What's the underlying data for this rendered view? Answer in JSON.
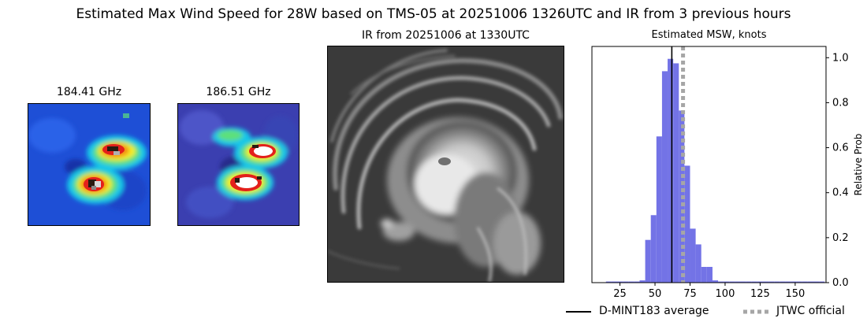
{
  "suptitle": "Estimated Max Wind Speed for 28W based on TMS-05 at 20251006 1326UTC and IR from 3 previous hours",
  "panels": {
    "mw1_title": "184.41 GHz",
    "mw2_title": "186.51 GHz",
    "ir_title": "IR from 20251006 at 1330UTC",
    "hist_title": "Estimated MSW, knots"
  },
  "colors": {
    "hist_bar": "#7373e6",
    "average_line": "#000000",
    "jtwc_line": "#a6a6a6"
  },
  "chart_data": {
    "type": "bar",
    "title": "Estimated MSW, knots",
    "xlabel": "",
    "ylabel": "Relative Prob",
    "xlim": [
      5,
      172
    ],
    "ylim": [
      0,
      1.05
    ],
    "xticks": [
      25,
      50,
      75,
      100,
      125,
      150
    ],
    "yticks": [
      0.0,
      0.2,
      0.4,
      0.6,
      0.8,
      1.0
    ],
    "ytick_labels": [
      "0.0",
      "0.2",
      "0.4",
      "0.6",
      "0.8",
      "1.0"
    ],
    "yaxis_side": "right",
    "bin_width": 4,
    "bins": [
      {
        "x0": 15,
        "value": 0.005
      },
      {
        "x0": 19,
        "value": 0.005
      },
      {
        "x0": 23,
        "value": 0.005
      },
      {
        "x0": 27,
        "value": 0.005
      },
      {
        "x0": 31,
        "value": 0.005
      },
      {
        "x0": 35,
        "value": 0.005
      },
      {
        "x0": 39,
        "value": 0.01
      },
      {
        "x0": 43,
        "value": 0.19
      },
      {
        "x0": 47,
        "value": 0.3
      },
      {
        "x0": 51,
        "value": 0.65
      },
      {
        "x0": 55,
        "value": 0.94
      },
      {
        "x0": 59,
        "value": 0.995
      },
      {
        "x0": 63,
        "value": 0.975
      },
      {
        "x0": 67,
        "value": 0.765
      },
      {
        "x0": 71,
        "value": 0.52
      },
      {
        "x0": 75,
        "value": 0.24
      },
      {
        "x0": 79,
        "value": 0.17
      },
      {
        "x0": 83,
        "value": 0.07
      },
      {
        "x0": 87,
        "value": 0.07
      },
      {
        "x0": 91,
        "value": 0.01
      },
      {
        "x0": 95,
        "value": 0.005
      },
      {
        "x0": 99,
        "value": 0.005
      },
      {
        "x0": 103,
        "value": 0.005
      },
      {
        "x0": 107,
        "value": 0.005
      },
      {
        "x0": 111,
        "value": 0.005
      },
      {
        "x0": 115,
        "value": 0.005
      },
      {
        "x0": 119,
        "value": 0.005
      },
      {
        "x0": 123,
        "value": 0.005
      },
      {
        "x0": 127,
        "value": 0.005
      },
      {
        "x0": 131,
        "value": 0.005
      },
      {
        "x0": 135,
        "value": 0.005
      },
      {
        "x0": 139,
        "value": 0.005
      },
      {
        "x0": 143,
        "value": 0.005
      },
      {
        "x0": 147,
        "value": 0.005
      },
      {
        "x0": 151,
        "value": 0.005
      },
      {
        "x0": 155,
        "value": 0.005
      },
      {
        "x0": 159,
        "value": 0.005
      },
      {
        "x0": 163,
        "value": 0.005
      },
      {
        "x0": 167,
        "value": 0.005
      }
    ],
    "average_x": 62,
    "jtwc_x": 70,
    "legend": [
      {
        "label": "D-MINT183 average",
        "style": "solid"
      },
      {
        "label": "JTWC official",
        "style": "dotted"
      }
    ]
  }
}
